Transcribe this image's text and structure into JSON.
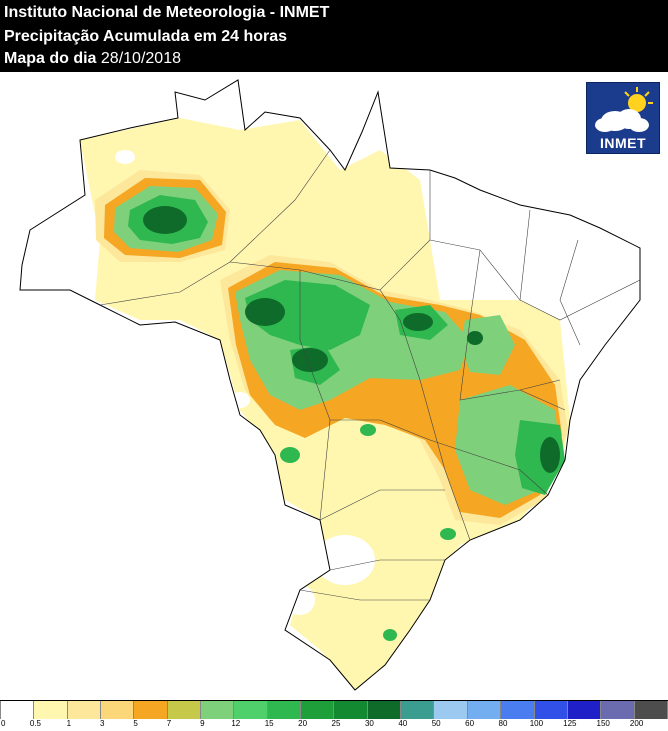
{
  "header": {
    "line1": "Instituto Nacional de Meteorologia - INMET",
    "line2": "Precipitação Acumulada em 24 horas",
    "line3_prefix": "Mapa do dia ",
    "line3_date": "28/10/2018"
  },
  "logo": {
    "text": "INMET",
    "icon": "sun-cloud-icon"
  },
  "legend": {
    "labels": [
      "0",
      "0.5",
      "1",
      "3",
      "5",
      "7",
      "9",
      "12",
      "15",
      "20",
      "25",
      "30",
      "40",
      "50",
      "60",
      "80",
      "100",
      "125",
      "150",
      "200"
    ],
    "colors": [
      "#ffffff",
      "#fff7b0",
      "#fde79a",
      "#fbd77a",
      "#f5a623",
      "#c6c84a",
      "#7fd07a",
      "#4fd06a",
      "#2fb84f",
      "#1e9f3a",
      "#138a32",
      "#0e6b2a",
      "#3a9d8f",
      "#9cc9f0",
      "#72aef0",
      "#4a7ef0",
      "#3050e8",
      "#2020c8",
      "#6b6bb0",
      "#4d4d4d"
    ]
  },
  "colors": {
    "very_light": "#fff7b0",
    "light": "#fde79a",
    "orange": "#f5a623",
    "light_green": "#7fd07a",
    "green": "#2fb84f",
    "dark_green": "#0e6b2a",
    "outside": "#ffffff"
  }
}
